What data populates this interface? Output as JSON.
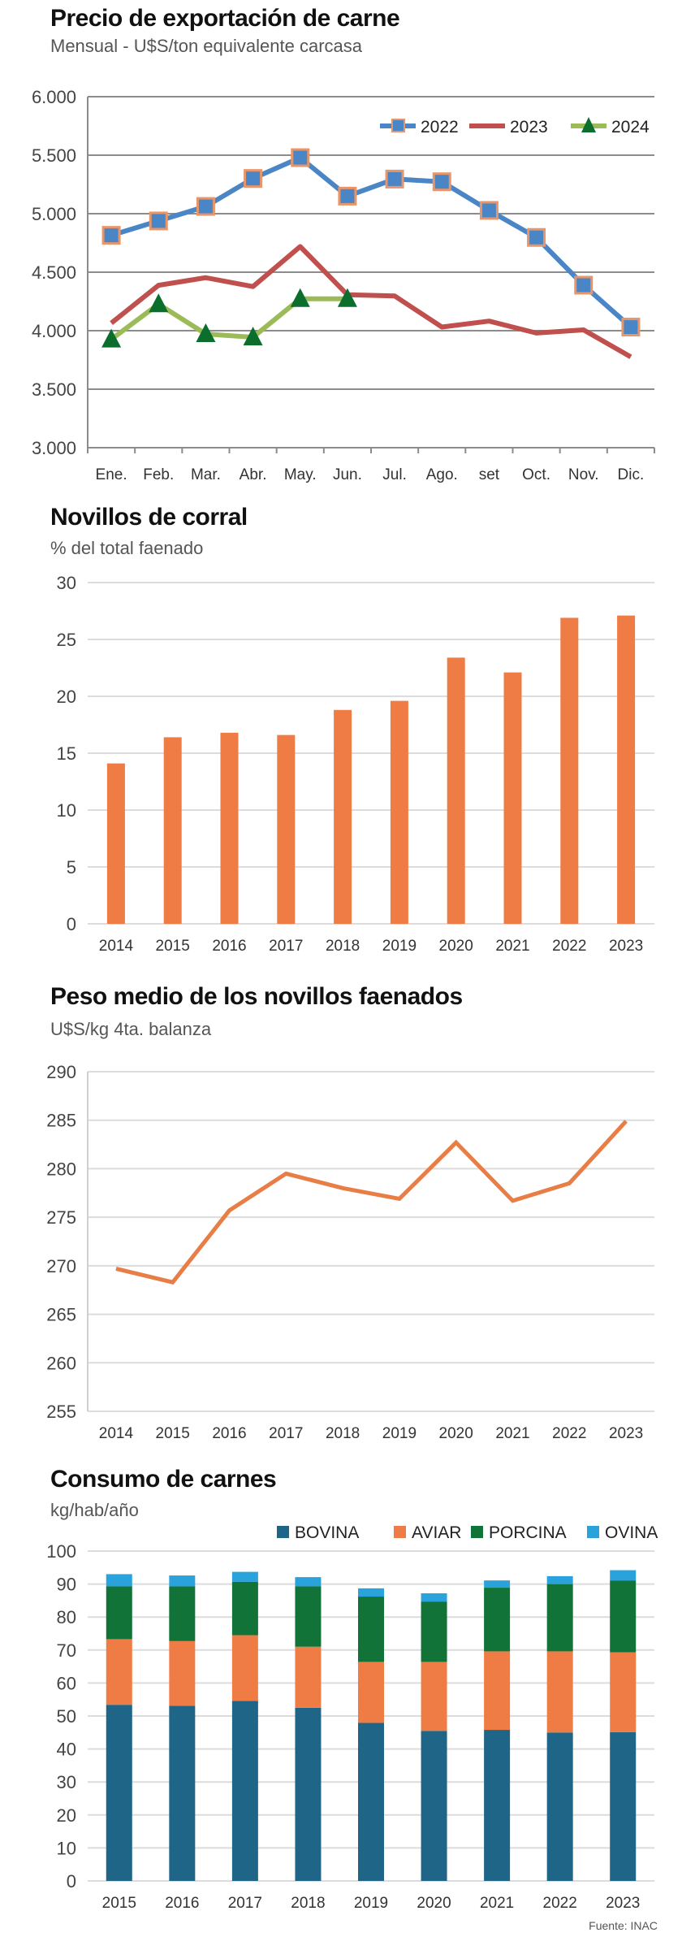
{
  "chart_data": [
    {
      "id": "export",
      "type": "line",
      "title": "Precio de exportación de carne",
      "subtitle": "Mensual - U$S/ton equivalente carcasa",
      "xlabel": "",
      "ylabel": "",
      "categories": [
        "Ene.",
        "Feb.",
        "Mar.",
        "Abr.",
        "May.",
        "Jun.",
        "Jul.",
        "Ago.",
        "set",
        "Oct.",
        "Nov.",
        "Dic."
      ],
      "ylim": [
        3000,
        6000
      ],
      "yticks": [
        3000,
        3500,
        4000,
        4500,
        5000,
        5500,
        6000
      ],
      "ytick_labels": [
        "3.000",
        "3.500",
        "4.000",
        "4.500",
        "5.000",
        "5.500",
        "6.000"
      ],
      "grid": true,
      "legend_position": "top-right",
      "series": [
        {
          "name": "2022",
          "color": "#4a86c5",
          "marker": "square",
          "marker_edge": "#e8956a",
          "values": [
            4815,
            4938,
            5062,
            5301,
            5479,
            5150,
            5296,
            5273,
            5028,
            4797,
            4389,
            4031
          ]
        },
        {
          "name": "2023",
          "color": "#c0504d",
          "marker": "none",
          "values": [
            4065,
            4388,
            4453,
            4377,
            4719,
            4307,
            4297,
            4031,
            4082,
            3980,
            4007,
            3776
          ]
        },
        {
          "name": "2024",
          "color": "#9bbb59",
          "marker": "triangle",
          "marker_color": "#0b6e2c",
          "values": [
            3926,
            4227,
            3972,
            3944,
            4273,
            4273,
            null,
            null,
            null,
            null,
            null,
            null
          ]
        }
      ]
    },
    {
      "id": "corral",
      "type": "bar",
      "title": "Novillos de corral",
      "subtitle": "% del total faenado",
      "xlabel": "",
      "ylabel": "",
      "categories": [
        "2014",
        "2015",
        "2016",
        "2017",
        "2018",
        "2019",
        "2020",
        "2021",
        "2022",
        "2023"
      ],
      "values": [
        14.1,
        16.4,
        16.8,
        16.6,
        18.8,
        19.6,
        23.4,
        22.1,
        26.9,
        27.1
      ],
      "color": "#f07c45",
      "ylim": [
        0,
        30
      ],
      "yticks": [
        0,
        5,
        10,
        15,
        20,
        25,
        30
      ],
      "ytick_labels": [
        "0",
        "5",
        "10",
        "15",
        "20",
        "25",
        "30"
      ],
      "grid": true
    },
    {
      "id": "peso",
      "type": "line",
      "title": "Peso medio de los novillos faenados",
      "subtitle": "U$S/kg 4ta. balanza",
      "xlabel": "",
      "ylabel": "",
      "categories": [
        "2014",
        "2015",
        "2016",
        "2017",
        "2018",
        "2019",
        "2020",
        "2021",
        "2022",
        "2023"
      ],
      "values": [
        269.7,
        268.3,
        275.7,
        279.5,
        278.0,
        276.9,
        282.7,
        276.7,
        278.5,
        284.9
      ],
      "color": "#e87d45",
      "ylim": [
        255,
        290
      ],
      "yticks": [
        255,
        260,
        265,
        270,
        275,
        280,
        285,
        290
      ],
      "ytick_labels": [
        "255",
        "260",
        "265",
        "270",
        "275",
        "280",
        "285",
        "290"
      ],
      "grid": true
    },
    {
      "id": "consumo",
      "type": "bar",
      "stacked": true,
      "title": "Consumo de carnes",
      "subtitle": "kg/hab/año",
      "xlabel": "",
      "ylabel": "",
      "categories": [
        "2015",
        "2016",
        "2017",
        "2018",
        "2019",
        "2020",
        "2021",
        "2022",
        "2023"
      ],
      "ylim": [
        0,
        100
      ],
      "yticks": [
        0,
        10,
        20,
        30,
        40,
        50,
        60,
        70,
        80,
        90,
        100
      ],
      "ytick_labels": [
        "0",
        "10",
        "20",
        "30",
        "40",
        "50",
        "60",
        "70",
        "80",
        "90",
        "100"
      ],
      "grid": true,
      "legend_position": "top-right",
      "series": [
        {
          "name": "BOVINA",
          "color": "#1f6587",
          "values": [
            53.4,
            53.1,
            54.6,
            52.5,
            47.9,
            45.5,
            45.8,
            45.0,
            45.1
          ]
        },
        {
          "name": "AVIAR",
          "color": "#f07c45",
          "values": [
            19.9,
            19.6,
            19.9,
            18.5,
            18.5,
            20.9,
            23.8,
            24.6,
            24.2
          ]
        },
        {
          "name": "PORCINA",
          "color": "#117337",
          "values": [
            16.0,
            16.6,
            16.2,
            18.3,
            19.8,
            18.3,
            19.3,
            20.4,
            21.8
          ]
        },
        {
          "name": "OVINA",
          "color": "#2aa3dc",
          "values": [
            3.7,
            3.3,
            3.0,
            2.8,
            2.5,
            2.5,
            2.2,
            2.4,
            3.1
          ]
        }
      ]
    }
  ],
  "footnote": "Fuente: INAC"
}
